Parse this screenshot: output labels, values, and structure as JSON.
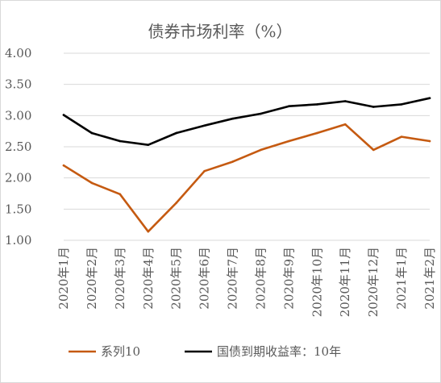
{
  "chart_data": {
    "type": "line",
    "title": "债券市场利率（%）",
    "xlabel": "",
    "ylabel": "",
    "ylim": [
      1.0,
      4.0
    ],
    "yticks": [
      "1.00",
      "1.50",
      "2.00",
      "2.50",
      "3.00",
      "3.50",
      "4.00"
    ],
    "categories": [
      "2020年1月",
      "2020年2月",
      "2020年3月",
      "2020年4月",
      "2020年5月",
      "2020年6月",
      "2020年7月",
      "2020年8月",
      "2020年9月",
      "2020年10月",
      "2020年11月",
      "2020年12月",
      "2021年1月",
      "2021年2月"
    ],
    "series": [
      {
        "name": "系列10",
        "color": "#c55a11",
        "values": [
          2.2,
          1.92,
          1.74,
          1.14,
          1.6,
          2.11,
          2.26,
          2.45,
          2.59,
          2.72,
          2.86,
          2.45,
          2.66,
          2.59
        ]
      },
      {
        "name": "国债到期收益率：10年",
        "color": "#000000",
        "values": [
          3.01,
          2.72,
          2.59,
          2.53,
          2.72,
          2.84,
          2.95,
          3.03,
          3.15,
          3.18,
          3.23,
          3.14,
          3.18,
          3.28
        ]
      }
    ],
    "grid": true,
    "legend_position": "bottom"
  }
}
